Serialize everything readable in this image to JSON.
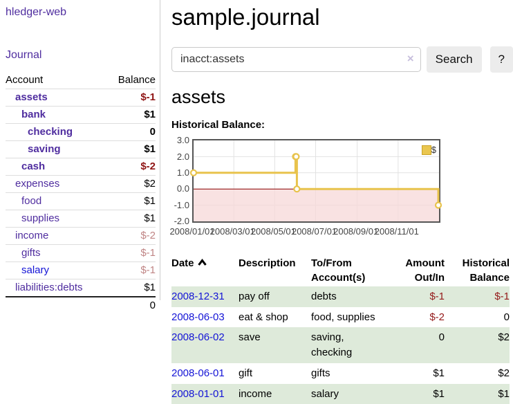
{
  "app": {
    "title": "hledger-web"
  },
  "colors": {
    "link_purple": "#4f2d9f",
    "link_blue": "#1414d6",
    "negative_strong": "#8f1414",
    "negative_soft": "#c08585",
    "register_negative": "#941919",
    "row_stripe_green": "#deeada",
    "chart_line_gold": "#e8c34c",
    "chart_negative_fill": "#f7d8d8",
    "chart_zero_line": "#8b0000",
    "button_bg": "#ececec"
  },
  "sidebar": {
    "nav": {
      "journal_label": "Journal"
    },
    "accounts_table": {
      "headers": {
        "account": "Account",
        "balance": "Balance"
      },
      "rows": [
        {
          "name": "assets",
          "balance": "$-1",
          "depth": 1,
          "bold": true,
          "balance_color": "darkred",
          "link_color": "purple"
        },
        {
          "name": "bank",
          "balance": "$1",
          "depth": 2,
          "bold": true,
          "balance_color": "black",
          "link_color": "purple"
        },
        {
          "name": "checking",
          "balance": "0",
          "depth": 3,
          "bold": true,
          "balance_color": "black",
          "link_color": "purple"
        },
        {
          "name": "saving",
          "balance": "$1",
          "depth": 3,
          "bold": true,
          "balance_color": "black",
          "link_color": "purple"
        },
        {
          "name": "cash",
          "balance": "$-2",
          "depth": 2,
          "bold": true,
          "balance_color": "darkred",
          "link_color": "purple"
        },
        {
          "name": "expenses",
          "balance": "$2",
          "depth": 1,
          "bold": false,
          "balance_color": "black",
          "link_color": "purple"
        },
        {
          "name": "food",
          "balance": "$1",
          "depth": 2,
          "bold": false,
          "balance_color": "black",
          "link_color": "purple"
        },
        {
          "name": "supplies",
          "balance": "$1",
          "depth": 2,
          "bold": false,
          "balance_color": "black",
          "link_color": "purple"
        },
        {
          "name": "income",
          "balance": "$-2",
          "depth": 1,
          "bold": false,
          "balance_color": "rose",
          "link_color": "purple"
        },
        {
          "name": "gifts",
          "balance": "$-1",
          "depth": 2,
          "bold": false,
          "balance_color": "rose",
          "link_color": "purple"
        },
        {
          "name": "salary",
          "balance": "$-1",
          "depth": 2,
          "bold": false,
          "balance_color": "rose",
          "link_color": "blue"
        },
        {
          "name": "liabilities:debts",
          "balance": "$1",
          "depth": 1,
          "bold": false,
          "balance_color": "black",
          "link_color": "purple"
        }
      ],
      "total": "0"
    }
  },
  "main": {
    "title": "sample.journal",
    "search": {
      "value": "inacct:assets",
      "clear_icon": "×",
      "button_label": "Search",
      "help_label": "?"
    },
    "account_heading": "assets",
    "section_label": "Historical Balance:"
  },
  "chart_data": {
    "type": "line",
    "step": true,
    "series": [
      {
        "name": "$",
        "color": "#e8c34c",
        "points": [
          [
            "2008-01-01",
            1
          ],
          [
            "2008-06-01",
            2
          ],
          [
            "2008-06-02",
            2
          ],
          [
            "2008-06-03",
            0
          ],
          [
            "2008-12-31",
            -1
          ]
        ]
      }
    ],
    "ylim": [
      -2,
      3
    ],
    "yticks": [
      "3.0",
      "2.0",
      "1.0",
      "0.0",
      "-1.0",
      "-2.0"
    ],
    "xticks": [
      "2008/01/01",
      "2008/03/01",
      "2008/05/01",
      "2008/07/01",
      "2008/09/01",
      "2008/11/01"
    ],
    "xrange": [
      "2008-01-01",
      "2009-01-01"
    ],
    "grid": true,
    "negative_region_fill": "#f7d8d8",
    "zero_line_color": "#8b0000",
    "legend": {
      "label": "$",
      "position": "top-right"
    }
  },
  "register": {
    "headers": {
      "date": "Date",
      "description": "Description",
      "accounts": "To/From Account(s)",
      "amount": "Amount Out/In",
      "balance": "Historical Balance"
    },
    "rows": [
      {
        "date": "2008-12-31",
        "description": "pay off",
        "accounts": "debts",
        "amount": "$-1",
        "amount_color": "red",
        "balance": "$-1",
        "balance_color": "red"
      },
      {
        "date": "2008-06-03",
        "description": "eat & shop",
        "accounts": "food, supplies",
        "amount": "$-2",
        "amount_color": "red",
        "balance": "0",
        "balance_color": "black"
      },
      {
        "date": "2008-06-02",
        "description": "save",
        "accounts": "saving, checking",
        "amount": "0",
        "amount_color": "black",
        "balance": "$2",
        "balance_color": "black"
      },
      {
        "date": "2008-06-01",
        "description": "gift",
        "accounts": "gifts",
        "amount": "$1",
        "amount_color": "black",
        "balance": "$2",
        "balance_color": "black"
      },
      {
        "date": "2008-01-01",
        "description": "income",
        "accounts": "salary",
        "amount": "$1",
        "amount_color": "black",
        "balance": "$1",
        "balance_color": "black"
      }
    ]
  }
}
